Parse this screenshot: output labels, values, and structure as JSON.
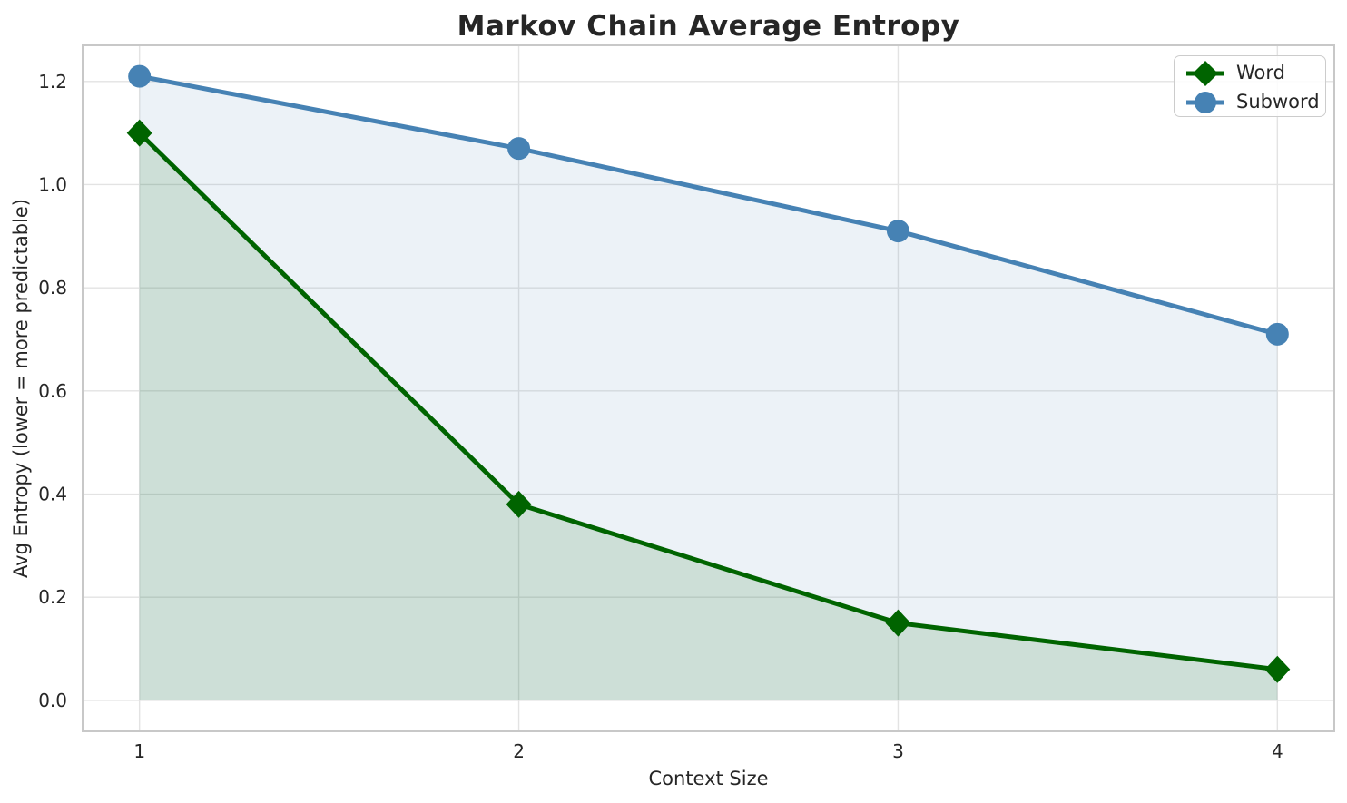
{
  "title": "Markov Chain Average Entropy",
  "colors": {
    "text": "#262626",
    "grid": "#e3e3e3",
    "spine": "#c8c8c8",
    "background": "#ffffff",
    "word_green": "#006400",
    "subword_blue": "#4682b4"
  },
  "legend": {
    "items": [
      {
        "label": "Word"
      },
      {
        "label": "Subword"
      }
    ]
  },
  "chart_data": {
    "type": "line",
    "title": "Markov Chain Average Entropy",
    "xlabel": "Context Size",
    "ylabel": "Avg Entropy (lower = more predictable)",
    "x": [
      1,
      2,
      3,
      4
    ],
    "xtick_labels": [
      "1",
      "2",
      "3",
      "4"
    ],
    "ytick_values": [
      0.0,
      0.2,
      0.4,
      0.6,
      0.8,
      1.0,
      1.2
    ],
    "ytick_labels": [
      "0.0",
      "0.2",
      "0.4",
      "0.6",
      "0.8",
      "1.0",
      "1.2"
    ],
    "xlim": [
      0.85,
      4.15
    ],
    "ylim": [
      -0.06,
      1.27
    ],
    "grid": true,
    "legend_position": "upper right",
    "fill_baseline": 0.0,
    "series": [
      {
        "name": "Word",
        "values": [
          1.1,
          0.38,
          0.15,
          0.06
        ],
        "color": "#006400",
        "marker": "diamond",
        "fill": true,
        "fill_alpha": 0.13
      },
      {
        "name": "Subword",
        "values": [
          1.21,
          1.07,
          0.91,
          0.71
        ],
        "color": "#4682b4",
        "marker": "circle",
        "fill": true,
        "fill_alpha": 0.1
      }
    ]
  }
}
